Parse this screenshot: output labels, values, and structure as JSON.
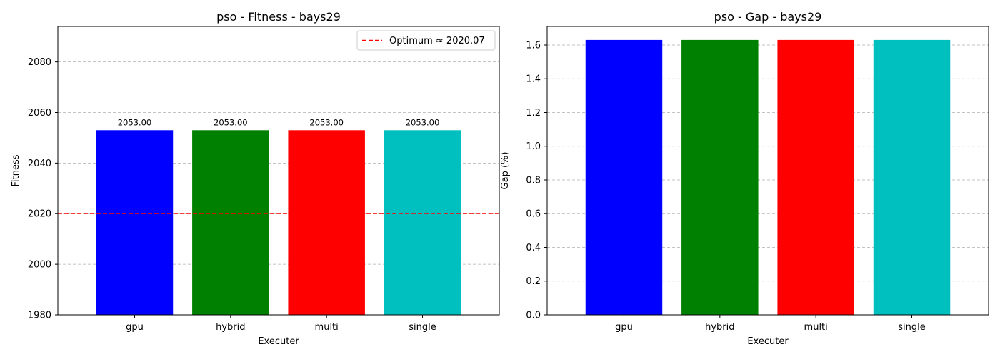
{
  "chart_data": [
    {
      "type": "bar",
      "title": "pso - Fitness - bays29",
      "xlabel": "Executer",
      "ylabel": "Fitness",
      "categories": [
        "gpu",
        "hybrid",
        "multi",
        "single"
      ],
      "values": [
        2053.0,
        2053.0,
        2053.0,
        2053.0
      ],
      "value_labels": [
        "2053.00",
        "2053.00",
        "2053.00",
        "2053.00"
      ],
      "colors": [
        "#0000ff",
        "#008000",
        "#ff0000",
        "#00bfbf"
      ],
      "ylim": [
        1980,
        2094
      ],
      "yticks": [
        1980,
        2000,
        2020,
        2040,
        2060,
        2080
      ],
      "grid": "y",
      "reference_line": {
        "y": 2020.07,
        "label": "Optimum ≈ 2020.07",
        "color": "#ff0000",
        "style": "dashed"
      },
      "legend": {
        "placement": "top-right",
        "entries": [
          "Optimum ≈ 2020.07"
        ]
      }
    },
    {
      "type": "bar",
      "title": "pso - Gap - bays29",
      "xlabel": "Executer",
      "ylabel": "Gap (%)",
      "categories": [
        "gpu",
        "hybrid",
        "multi",
        "single"
      ],
      "values": [
        1.63,
        1.63,
        1.63,
        1.63
      ],
      "colors": [
        "#0000ff",
        "#008000",
        "#ff0000",
        "#00bfbf"
      ],
      "ylim": [
        0,
        1.71
      ],
      "yticks": [
        0.0,
        0.2,
        0.4,
        0.6,
        0.8,
        1.0,
        1.2,
        1.4,
        1.6
      ],
      "ytick_labels": [
        "0.0",
        "0.2",
        "0.4",
        "0.6",
        "0.8",
        "1.0",
        "1.2",
        "1.4",
        "1.6"
      ],
      "grid": "y"
    }
  ]
}
